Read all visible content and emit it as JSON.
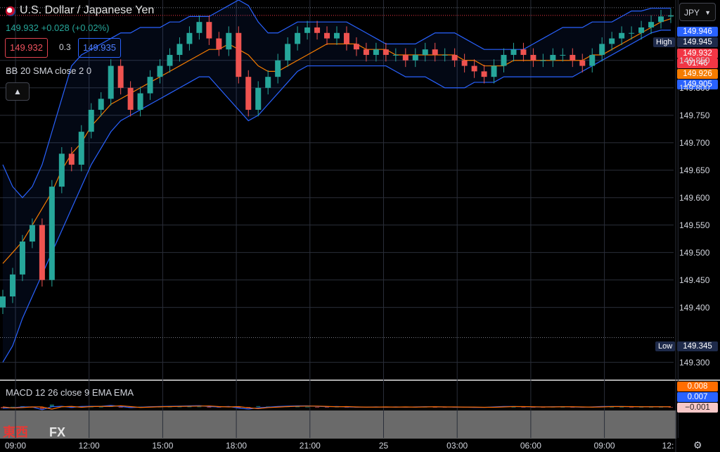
{
  "header": {
    "title": "U.S. Dollar / Japanese Yen",
    "last": "149.932",
    "change": "+0.028",
    "change_pct": "(+0.02%)",
    "bid": "149.932",
    "ask": "149.935",
    "spread": "0.3",
    "indicator_label": "BB 20 SMA close 2 0",
    "collapse_icon": "chevron-up-icon",
    "currency": "JPY"
  },
  "colors": {
    "up": "#26a69a",
    "down": "#ef5350",
    "bb_band": "#2962ff",
    "bb_basis": "#f57c00",
    "macd_line": "#2962ff",
    "signal_line": "#ff6d00"
  },
  "price_labels": {
    "high_tag": "High",
    "high_value": "149.946",
    "upper_bb": "149.945",
    "last_price": "149.932",
    "countdown": "01:46",
    "basis": "149.926",
    "lower_bb": "149.905",
    "low_tag": "Low",
    "low_value": "149.345"
  },
  "macd": {
    "label": "MACD 12 26 close 9 EMA EMA",
    "signal_value": "0.008",
    "macd_value": "0.007",
    "hist_value": "−0.001"
  },
  "branding": {
    "logo_text": "東西",
    "logo_fx": "FX",
    "settings_icon": "gear-icon"
  },
  "chart_data": {
    "type": "candlestick",
    "y_ticks": [
      "149.850",
      "149.800",
      "149.750",
      "149.700",
      "149.650",
      "149.600",
      "149.550",
      "149.500",
      "149.450",
      "149.400",
      "149.300"
    ],
    "ylim": [
      149.27,
      149.96
    ],
    "x_ticks": [
      "09:00",
      "12:00",
      "15:00",
      "18:00",
      "21:00",
      "25",
      "03:00",
      "06:00",
      "09:00",
      "12:"
    ],
    "series": [
      {
        "name": "Close",
        "values": [
          149.42,
          149.46,
          149.52,
          149.55,
          149.45,
          149.62,
          149.68,
          149.66,
          149.72,
          149.76,
          149.78,
          149.84,
          149.8,
          149.76,
          149.79,
          149.82,
          149.84,
          149.86,
          149.88,
          149.9,
          149.92,
          149.89,
          149.87,
          149.9,
          149.82,
          149.76,
          149.8,
          149.82,
          149.85,
          149.88,
          149.9,
          149.91,
          149.9,
          149.89,
          149.9,
          149.88,
          149.87,
          149.86,
          149.87,
          149.86,
          149.86,
          149.85,
          149.86,
          149.87,
          149.86,
          149.86,
          149.85,
          149.84,
          149.83,
          149.82,
          149.84,
          149.86,
          149.87,
          149.86,
          149.85,
          149.85,
          149.86,
          149.86,
          149.85,
          149.84,
          149.86,
          149.88,
          149.89,
          149.9,
          149.9,
          149.91,
          149.92,
          149.93,
          149.932
        ]
      },
      {
        "name": "BB Basis",
        "values": [
          149.48,
          149.5,
          149.52,
          149.55,
          149.58,
          149.61,
          149.65,
          149.68,
          149.7,
          149.73,
          149.75,
          149.77,
          149.78,
          149.79,
          149.8,
          149.81,
          149.82,
          149.83,
          149.84,
          149.85,
          149.86,
          149.87,
          149.87,
          149.88,
          149.87,
          149.86,
          149.84,
          149.83,
          149.83,
          149.84,
          149.85,
          149.86,
          149.87,
          149.88,
          149.88,
          149.88,
          149.88,
          149.87,
          149.87,
          149.87,
          149.86,
          149.86,
          149.86,
          149.86,
          149.86,
          149.86,
          149.86,
          149.85,
          149.85,
          149.84,
          149.84,
          149.84,
          149.85,
          149.85,
          149.85,
          149.85,
          149.85,
          149.85,
          149.85,
          149.85,
          149.86,
          149.86,
          149.87,
          149.88,
          149.89,
          149.9,
          149.91,
          149.92,
          149.926
        ]
      },
      {
        "name": "BB Upper",
        "values": [
          149.66,
          149.62,
          149.6,
          149.62,
          149.66,
          149.72,
          149.78,
          149.84,
          149.86,
          149.87,
          149.88,
          149.89,
          149.9,
          149.9,
          149.91,
          149.91,
          149.91,
          149.92,
          149.92,
          149.93,
          149.93,
          149.93,
          149.94,
          149.95,
          149.96,
          149.95,
          149.92,
          149.9,
          149.9,
          149.91,
          149.92,
          149.92,
          149.92,
          149.92,
          149.92,
          149.92,
          149.91,
          149.9,
          149.89,
          149.88,
          149.88,
          149.88,
          149.88,
          149.89,
          149.9,
          149.9,
          149.9,
          149.89,
          149.88,
          149.87,
          149.87,
          149.87,
          149.87,
          149.87,
          149.88,
          149.89,
          149.9,
          149.91,
          149.91,
          149.91,
          149.92,
          149.92,
          149.92,
          149.93,
          149.94,
          149.94,
          149.945,
          149.945,
          149.945
        ]
      },
      {
        "name": "BB Lower",
        "values": [
          149.3,
          149.33,
          149.38,
          149.42,
          149.46,
          149.5,
          149.54,
          149.58,
          149.62,
          149.66,
          149.69,
          149.72,
          149.74,
          149.75,
          149.76,
          149.77,
          149.78,
          149.79,
          149.8,
          149.81,
          149.82,
          149.82,
          149.8,
          149.78,
          149.76,
          149.74,
          149.75,
          149.77,
          149.79,
          149.81,
          149.83,
          149.84,
          149.84,
          149.84,
          149.84,
          149.84,
          149.84,
          149.84,
          149.84,
          149.84,
          149.83,
          149.82,
          149.82,
          149.82,
          149.81,
          149.8,
          149.8,
          149.8,
          149.81,
          149.81,
          149.81,
          149.82,
          149.82,
          149.82,
          149.82,
          149.82,
          149.82,
          149.82,
          149.82,
          149.83,
          149.84,
          149.85,
          149.86,
          149.87,
          149.88,
          149.89,
          149.9,
          149.905,
          149.905
        ]
      }
    ]
  }
}
